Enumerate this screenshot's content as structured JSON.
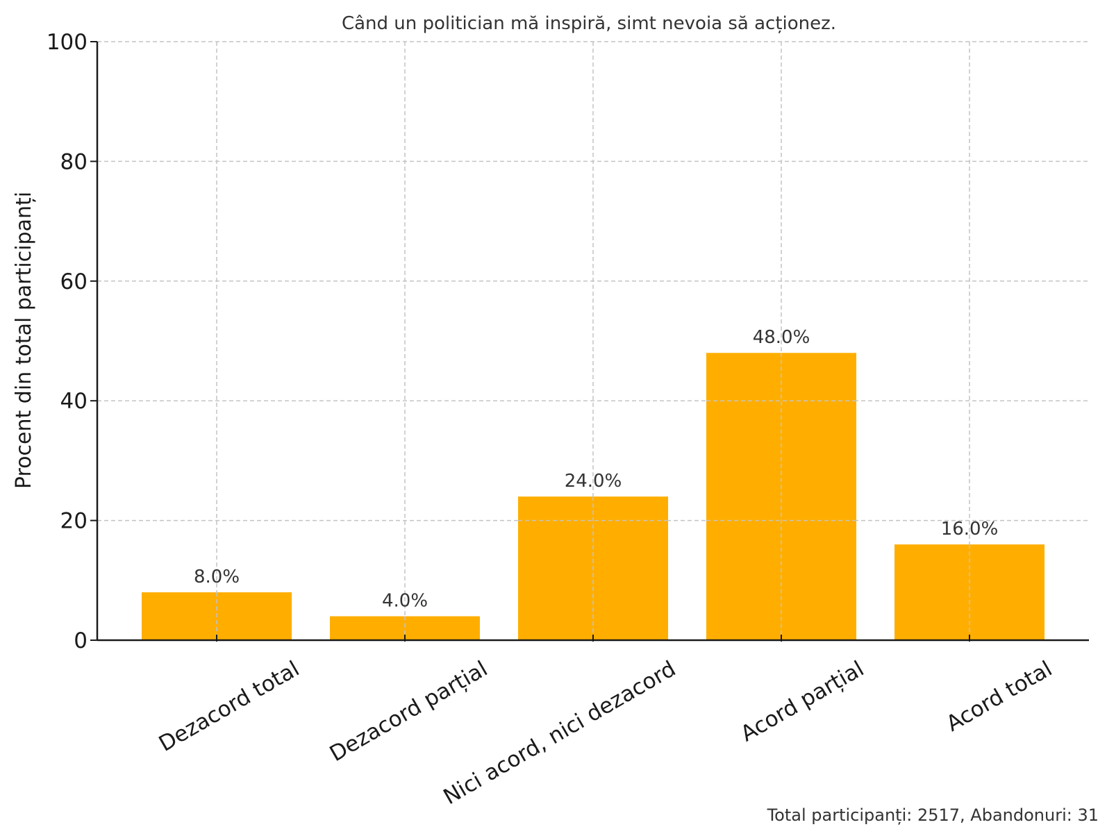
{
  "chart_data": {
    "type": "bar",
    "title": "Când un politician mă inspiră, simt nevoia să acționez.",
    "xlabel": "",
    "ylabel": "Procent din total participanți",
    "categories": [
      "Dezacord total",
      "Dezacord parțial",
      "Nici acord, nici dezacord",
      "Acord parțial",
      "Acord total"
    ],
    "values": [
      8.0,
      4.0,
      24.0,
      48.0,
      16.0
    ],
    "value_labels": [
      "8.0%",
      "4.0%",
      "24.0%",
      "48.0%",
      "16.0%"
    ],
    "ylim": [
      0,
      100
    ],
    "yticks": [
      0,
      20,
      40,
      60,
      80,
      100
    ],
    "grid": true,
    "bar_color": "#FFAE00",
    "footer": "Total participanți: 2517, Abandonuri: 31"
  }
}
